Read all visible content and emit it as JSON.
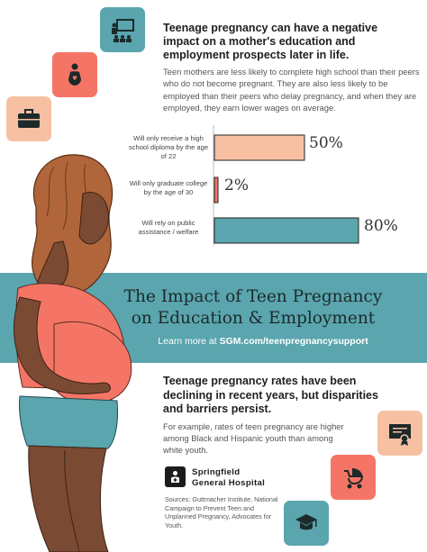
{
  "colors": {
    "teal": "#5aa5ae",
    "coral": "#f47565",
    "peach": "#f7c0a3",
    "dark": "#1d2a2b"
  },
  "icons": [
    "presentation-icon",
    "pregnant-woman-icon",
    "briefcase-icon",
    "diploma-icon",
    "baby-stroller-icon",
    "graduation-cap-icon"
  ],
  "top": {
    "heading": "Teenage pregnancy can have a negative impact on a mother's education and employment prospects later in life.",
    "body": "Teen mothers are less likely to complete high school than their peers who do not become pregnant. They are also less likely to be employed than their peers who delay pregnancy, and when they are employed, they earn lower wages on average."
  },
  "chart_data": {
    "type": "bar",
    "orientation": "horizontal",
    "categories": [
      "Will only receive a high school diploma by the age of 22",
      "Will only graduate college by the age of 30",
      "Will rely on public assistance / welfare"
    ],
    "values": [
      50,
      2,
      80
    ],
    "value_labels": [
      "50%",
      "2%",
      "80%"
    ],
    "bar_colors": [
      "#f7c0a3",
      "#f47565",
      "#5aa5ae"
    ],
    "xlim": [
      0,
      100
    ],
    "grid": false
  },
  "banner": {
    "title_line1": "The Impact of Teen Pregnancy",
    "title_line2": "on Education & Employment",
    "learn_prefix": "Learn more at",
    "learn_url": "SGM.com/teenpregnancysupport"
  },
  "bottom": {
    "heading": "Teenage pregnancy rates have been declining in recent years, but disparities and barriers persist.",
    "body": "For example, rates of teen pregnancy are higher among Black and Hispanic youth than among white youth."
  },
  "hospital": {
    "name_line1": "Springfield",
    "name_line2": "General Hospital"
  },
  "sources": "Sources: Guttmacher Institute, National Campaign to Prevent Teen and Unplanned Pregnancy, Advocates for Youth."
}
